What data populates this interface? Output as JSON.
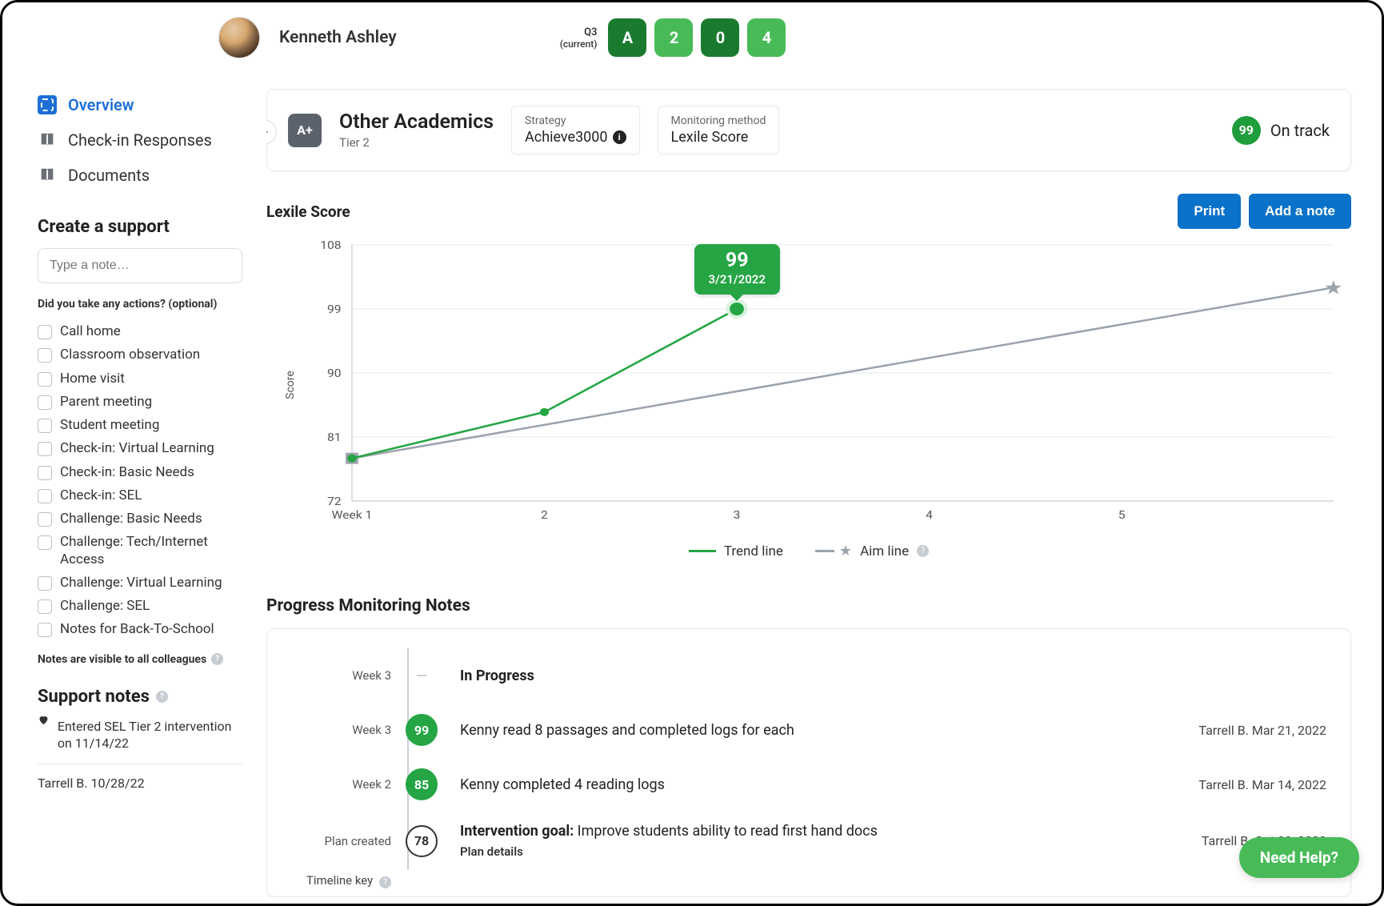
{
  "student": {
    "name": "Kenneth Ashley"
  },
  "quarter": {
    "label": "Q3",
    "sublabel": "(current)"
  },
  "pills": [
    {
      "text": "A",
      "variant": "dark"
    },
    {
      "text": "2",
      "variant": "light"
    },
    {
      "text": "0",
      "variant": "dark"
    },
    {
      "text": "4",
      "variant": "light"
    }
  ],
  "nav": {
    "overview": "Overview",
    "checkin": "Check-in Responses",
    "documents": "Documents"
  },
  "support": {
    "heading": "Create a support",
    "placeholder": "Type a note…",
    "sub_heading": "Did you take any actions? (optional)",
    "actions": [
      "Call home",
      "Classroom observation",
      "Home visit",
      "Parent meeting",
      "Student meeting",
      "Check-in: Virtual Learning",
      "Check-in: Basic Needs",
      "Check-in: SEL",
      "Challenge: Basic Needs",
      "Challenge: Tech/Internet Access",
      "Challenge: Virtual Learning",
      "Challenge: SEL",
      "Notes for Back-To-School"
    ],
    "visibility_note": "Notes are visible to all colleagues",
    "notes_heading": "Support notes",
    "note_text": "Entered SEL Tier 2 intervention on 11/14/22",
    "author_date": "Tarrell B. 10/28/22"
  },
  "domain": {
    "badge": "A+",
    "title": "Other Academics",
    "tier": "Tier 2",
    "strategy_label": "Strategy",
    "strategy_value": "Achieve3000",
    "method_label": "Monitoring method",
    "method_value": "Lexile Score",
    "track_value": "99",
    "track_text": "On track"
  },
  "chart": {
    "title": "Lexile Score",
    "print_label": "Print",
    "add_note_label": "Add a note",
    "y_axis_label": "Score",
    "y_ticks": [
      "108",
      "99",
      "90",
      "81",
      "72"
    ],
    "x_ticks": [
      "Week 1",
      "2",
      "3",
      "4",
      "5"
    ],
    "trend_points": [
      {
        "x": 0,
        "y": 78
      },
      {
        "x": 1,
        "y": 84.5
      },
      {
        "x": 2,
        "y": 99
      }
    ],
    "aim_points": [
      {
        "x": 0,
        "y": 78
      },
      {
        "x": 5.1,
        "y": 102
      }
    ],
    "tooltip": {
      "value": "99",
      "date": "3/21/2022"
    },
    "legend": {
      "trend": "Trend line",
      "aim": "Aim line"
    },
    "colors": {
      "trend": "#25a544",
      "aim": "#9ba2ab",
      "grid": "#e5e8ec",
      "axis_text": "#555555"
    }
  },
  "pm": {
    "heading": "Progress Monitoring Notes",
    "rows": [
      {
        "label": "Week 3",
        "badge": "",
        "badgeType": "none",
        "text": "In Progress",
        "meta": "",
        "head": true
      },
      {
        "label": "Week 3",
        "badge": "99",
        "badgeType": "fill",
        "text": "Kenny read 8 passages and completed logs for each",
        "meta": "Tarrell B. Mar 21, 2022"
      },
      {
        "label": "Week 2",
        "badge": "85",
        "badgeType": "fill",
        "text": "Kenny completed 4 reading logs",
        "meta": "Tarrell B. Mar 14, 2022"
      },
      {
        "label": "Plan created",
        "badge": "78",
        "badgeType": "outline",
        "text_prefix": "Intervention goal:",
        "text": " Improve students ability to read first hand docs",
        "meta": "Tarrell B. Oct 28, 2022",
        "sub": "Plan details"
      }
    ],
    "timeline_key": "Timeline key"
  },
  "help": {
    "label": "Need Help?"
  }
}
